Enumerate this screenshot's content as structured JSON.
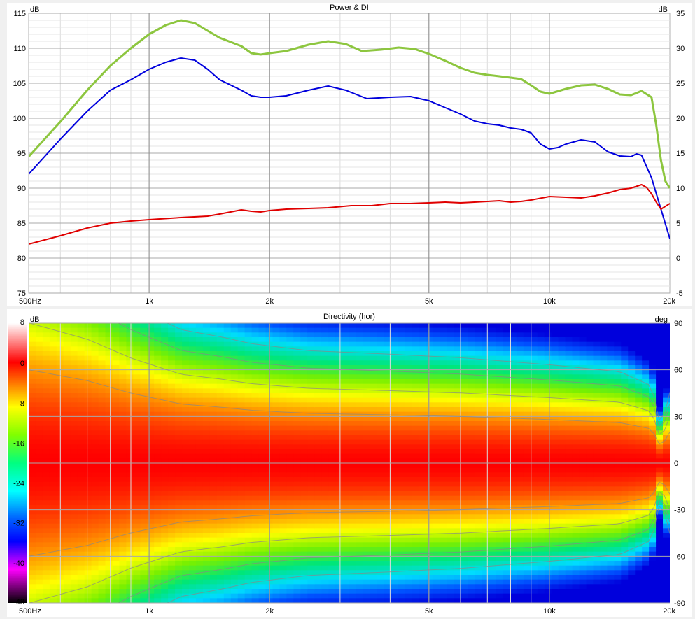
{
  "chart_data": [
    {
      "type": "line",
      "title": "Power & DI",
      "left_unit": "dB",
      "right_unit": "dB",
      "x_scale": "log",
      "xlim": [
        500,
        20000
      ],
      "ylim_left": [
        75,
        115
      ],
      "ylim_right": [
        -5,
        35
      ],
      "x_tick_labels": [
        {
          "value": 500,
          "label": "500Hz"
        },
        {
          "value": 1000,
          "label": "1k"
        },
        {
          "value": 2000,
          "label": "2k"
        },
        {
          "value": 5000,
          "label": "5k"
        },
        {
          "value": 10000,
          "label": "10k"
        },
        {
          "value": 20000,
          "label": "20k"
        }
      ],
      "y_left_ticks": [
        "75",
        "80",
        "85",
        "90",
        "95",
        "100",
        "105",
        "110",
        "115"
      ],
      "y_right_ticks": [
        "-5",
        "0",
        "5",
        "10",
        "15",
        "20",
        "25",
        "30",
        "35"
      ],
      "grid": true,
      "series": [
        {
          "color": "#8dc63f",
          "axis": "left",
          "points": [
            [
              500,
              94.5
            ],
            [
              600,
              99.5
            ],
            [
              700,
              104
            ],
            [
              800,
              107.5
            ],
            [
              900,
              110
            ],
            [
              1000,
              112
            ],
            [
              1100,
              113.3
            ],
            [
              1200,
              114
            ],
            [
              1300,
              113.6
            ],
            [
              1400,
              112.5
            ],
            [
              1500,
              111.5
            ],
            [
              1700,
              110.3
            ],
            [
              1800,
              109.3
            ],
            [
              1900,
              109.1
            ],
            [
              2000,
              109.3
            ],
            [
              2200,
              109.6
            ],
            [
              2500,
              110.5
            ],
            [
              2800,
              111
            ],
            [
              3100,
              110.6
            ],
            [
              3400,
              109.6
            ],
            [
              3800,
              109.8
            ],
            [
              4200,
              110.1
            ],
            [
              4600,
              109.9
            ],
            [
              5000,
              109.2
            ],
            [
              5500,
              108.2
            ],
            [
              6000,
              107.2
            ],
            [
              6500,
              106.5
            ],
            [
              7000,
              106.2
            ],
            [
              7500,
              106
            ],
            [
              8000,
              105.8
            ],
            [
              8500,
              105.6
            ],
            [
              9000,
              104.7
            ],
            [
              9500,
              103.8
            ],
            [
              10000,
              103.5
            ],
            [
              11000,
              104.2
            ],
            [
              12000,
              104.7
            ],
            [
              13000,
              104.8
            ],
            [
              14000,
              104.2
            ],
            [
              15000,
              103.4
            ],
            [
              16000,
              103.3
            ],
            [
              17000,
              103.9
            ],
            [
              18000,
              103
            ],
            [
              18500,
              99
            ],
            [
              19000,
              94
            ],
            [
              19500,
              91
            ],
            [
              20000,
              90
            ]
          ]
        },
        {
          "color": "#0000dd",
          "axis": "left",
          "points": [
            [
              500,
              92
            ],
            [
              600,
              97
            ],
            [
              700,
              101
            ],
            [
              800,
              104
            ],
            [
              900,
              105.5
            ],
            [
              1000,
              107
            ],
            [
              1100,
              108
            ],
            [
              1200,
              108.6
            ],
            [
              1300,
              108.3
            ],
            [
              1400,
              107
            ],
            [
              1500,
              105.5
            ],
            [
              1700,
              104
            ],
            [
              1800,
              103.2
            ],
            [
              1900,
              103
            ],
            [
              2000,
              103
            ],
            [
              2200,
              103.2
            ],
            [
              2500,
              104
            ],
            [
              2800,
              104.6
            ],
            [
              3100,
              104
            ],
            [
              3500,
              102.8
            ],
            [
              4000,
              103
            ],
            [
              4500,
              103.1
            ],
            [
              5000,
              102.5
            ],
            [
              5500,
              101.5
            ],
            [
              6000,
              100.6
            ],
            [
              6500,
              99.6
            ],
            [
              7000,
              99.2
            ],
            [
              7500,
              99
            ],
            [
              8000,
              98.6
            ],
            [
              8500,
              98.4
            ],
            [
              9000,
              97.9
            ],
            [
              9500,
              96.3
            ],
            [
              10000,
              95.6
            ],
            [
              10500,
              95.8
            ],
            [
              11000,
              96.3
            ],
            [
              12000,
              96.9
            ],
            [
              13000,
              96.6
            ],
            [
              14000,
              95.2
            ],
            [
              15000,
              94.6
            ],
            [
              16000,
              94.5
            ],
            [
              16500,
              94.9
            ],
            [
              17000,
              94.7
            ],
            [
              18000,
              91.5
            ],
            [
              19000,
              87
            ],
            [
              20000,
              82.8
            ]
          ]
        },
        {
          "color": "#e00000",
          "axis": "right",
          "points": [
            [
              500,
              2
            ],
            [
              600,
              3.2
            ],
            [
              700,
              4.3
            ],
            [
              800,
              5
            ],
            [
              900,
              5.3
            ],
            [
              1000,
              5.5
            ],
            [
              1200,
              5.8
            ],
            [
              1400,
              6
            ],
            [
              1500,
              6.3
            ],
            [
              1700,
              6.9
            ],
            [
              1800,
              6.7
            ],
            [
              1900,
              6.6
            ],
            [
              2000,
              6.8
            ],
            [
              2200,
              7
            ],
            [
              2500,
              7.1
            ],
            [
              2800,
              7.2
            ],
            [
              3200,
              7.5
            ],
            [
              3600,
              7.5
            ],
            [
              4000,
              7.8
            ],
            [
              4500,
              7.8
            ],
            [
              5000,
              7.9
            ],
            [
              5500,
              8
            ],
            [
              6000,
              7.9
            ],
            [
              6500,
              8
            ],
            [
              7000,
              8.1
            ],
            [
              7500,
              8.2
            ],
            [
              8000,
              8
            ],
            [
              8500,
              8.1
            ],
            [
              9000,
              8.3
            ],
            [
              10000,
              8.8
            ],
            [
              11000,
              8.7
            ],
            [
              12000,
              8.6
            ],
            [
              13000,
              8.9
            ],
            [
              14000,
              9.3
            ],
            [
              15000,
              9.8
            ],
            [
              16000,
              10
            ],
            [
              17000,
              10.5
            ],
            [
              17500,
              10.1
            ],
            [
              18000,
              9.2
            ],
            [
              18500,
              8
            ],
            [
              19000,
              7
            ],
            [
              20000,
              7.8
            ]
          ]
        }
      ]
    },
    {
      "type": "heatmap",
      "title": "Directivity (hor)",
      "left_unit": "dB",
      "right_unit": "deg",
      "x_scale": "log",
      "xlim": [
        500,
        20000
      ],
      "ylim_right": [
        -90,
        90
      ],
      "x_tick_labels": [
        {
          "value": 500,
          "label": "500Hz"
        },
        {
          "value": 1000,
          "label": "1k"
        },
        {
          "value": 2000,
          "label": "2k"
        },
        {
          "value": 5000,
          "label": "5k"
        },
        {
          "value": 10000,
          "label": "10k"
        },
        {
          "value": 20000,
          "label": "20k"
        }
      ],
      "color_scale_ticks": [
        "8",
        "0",
        "-8",
        "-16",
        "-24",
        "-32",
        "-40",
        "-48"
      ],
      "y_right_ticks": [
        "90",
        "60",
        "30",
        "0",
        "-30",
        "-60",
        "-90"
      ],
      "grid": true,
      "beamwidth_minus6dB_deg": [
        [
          500,
          60
        ],
        [
          700,
          53
        ],
        [
          900,
          45
        ],
        [
          1200,
          38
        ],
        [
          1500,
          36
        ],
        [
          1800,
          34
        ],
        [
          2500,
          32
        ],
        [
          4000,
          31
        ],
        [
          6000,
          30
        ],
        [
          10000,
          28
        ],
        [
          15000,
          26
        ],
        [
          18000,
          22
        ],
        [
          19000,
          10
        ],
        [
          20000,
          20
        ]
      ]
    }
  ]
}
